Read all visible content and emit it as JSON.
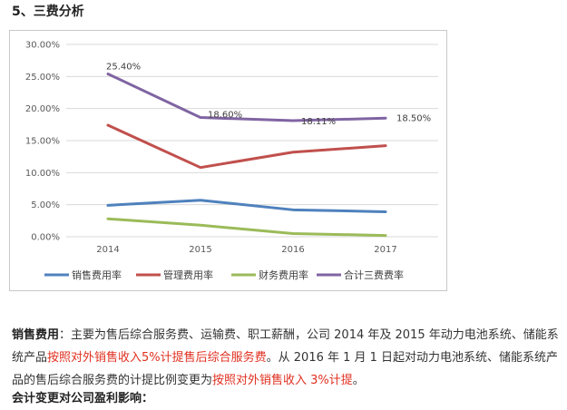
{
  "heading": "5、三费分析",
  "colors": {
    "sales": "#4f81bd",
    "admin": "#c0504d",
    "finance": "#9bbb59",
    "total": "#8064a2",
    "grid": "#d9d9d9",
    "highlight": "#e03020"
  },
  "chart_data": {
    "type": "line",
    "categories": [
      "2014",
      "2015",
      "2016",
      "2017"
    ],
    "ylim": [
      0,
      30
    ],
    "yticks": [
      "0.00%",
      "5.00%",
      "10.00%",
      "15.00%",
      "20.00%",
      "25.00%",
      "30.00%"
    ],
    "grid": true,
    "legend": "bottom",
    "series": [
      {
        "name": "销售费用率",
        "values": [
          4.9,
          5.7,
          4.2,
          3.9
        ],
        "color": "#4f81bd"
      },
      {
        "name": "管理费用率",
        "values": [
          17.4,
          10.8,
          13.2,
          14.2
        ],
        "color": "#c0504d"
      },
      {
        "name": "财务费用率",
        "values": [
          2.8,
          1.8,
          0.5,
          0.2
        ],
        "color": "#9bbb59"
      },
      {
        "name": "合计三费费率",
        "values": [
          25.4,
          18.6,
          18.11,
          18.5
        ],
        "color": "#8064a2"
      }
    ],
    "data_labels": [
      {
        "series": 3,
        "index": 0,
        "text": "25.40%"
      },
      {
        "series": 3,
        "index": 1,
        "text": "18.60%"
      },
      {
        "series": 3,
        "index": 2,
        "text": "18.11%"
      },
      {
        "series": 3,
        "index": 3,
        "text": "18.50%"
      }
    ]
  },
  "paragraph1": {
    "term": "销售费用",
    "colon": "：",
    "text1": "主要为售后综合服务费、运输费、职工薪酬，公司 2014 年及 2015 年动力电池系统、储能系统产品",
    "red1": "按照对外销售收入5%计提售后综合服务费",
    "text2": "。从 2016 年 1 月 1 日起对动力电池系统、储能系统产品的售后综合服务费的计提比例变更为",
    "red2": "按照对外销售收入 3%计提",
    "text3": "。"
  },
  "paragraph2": {
    "term": "会计变更对公司盈利影响："
  }
}
